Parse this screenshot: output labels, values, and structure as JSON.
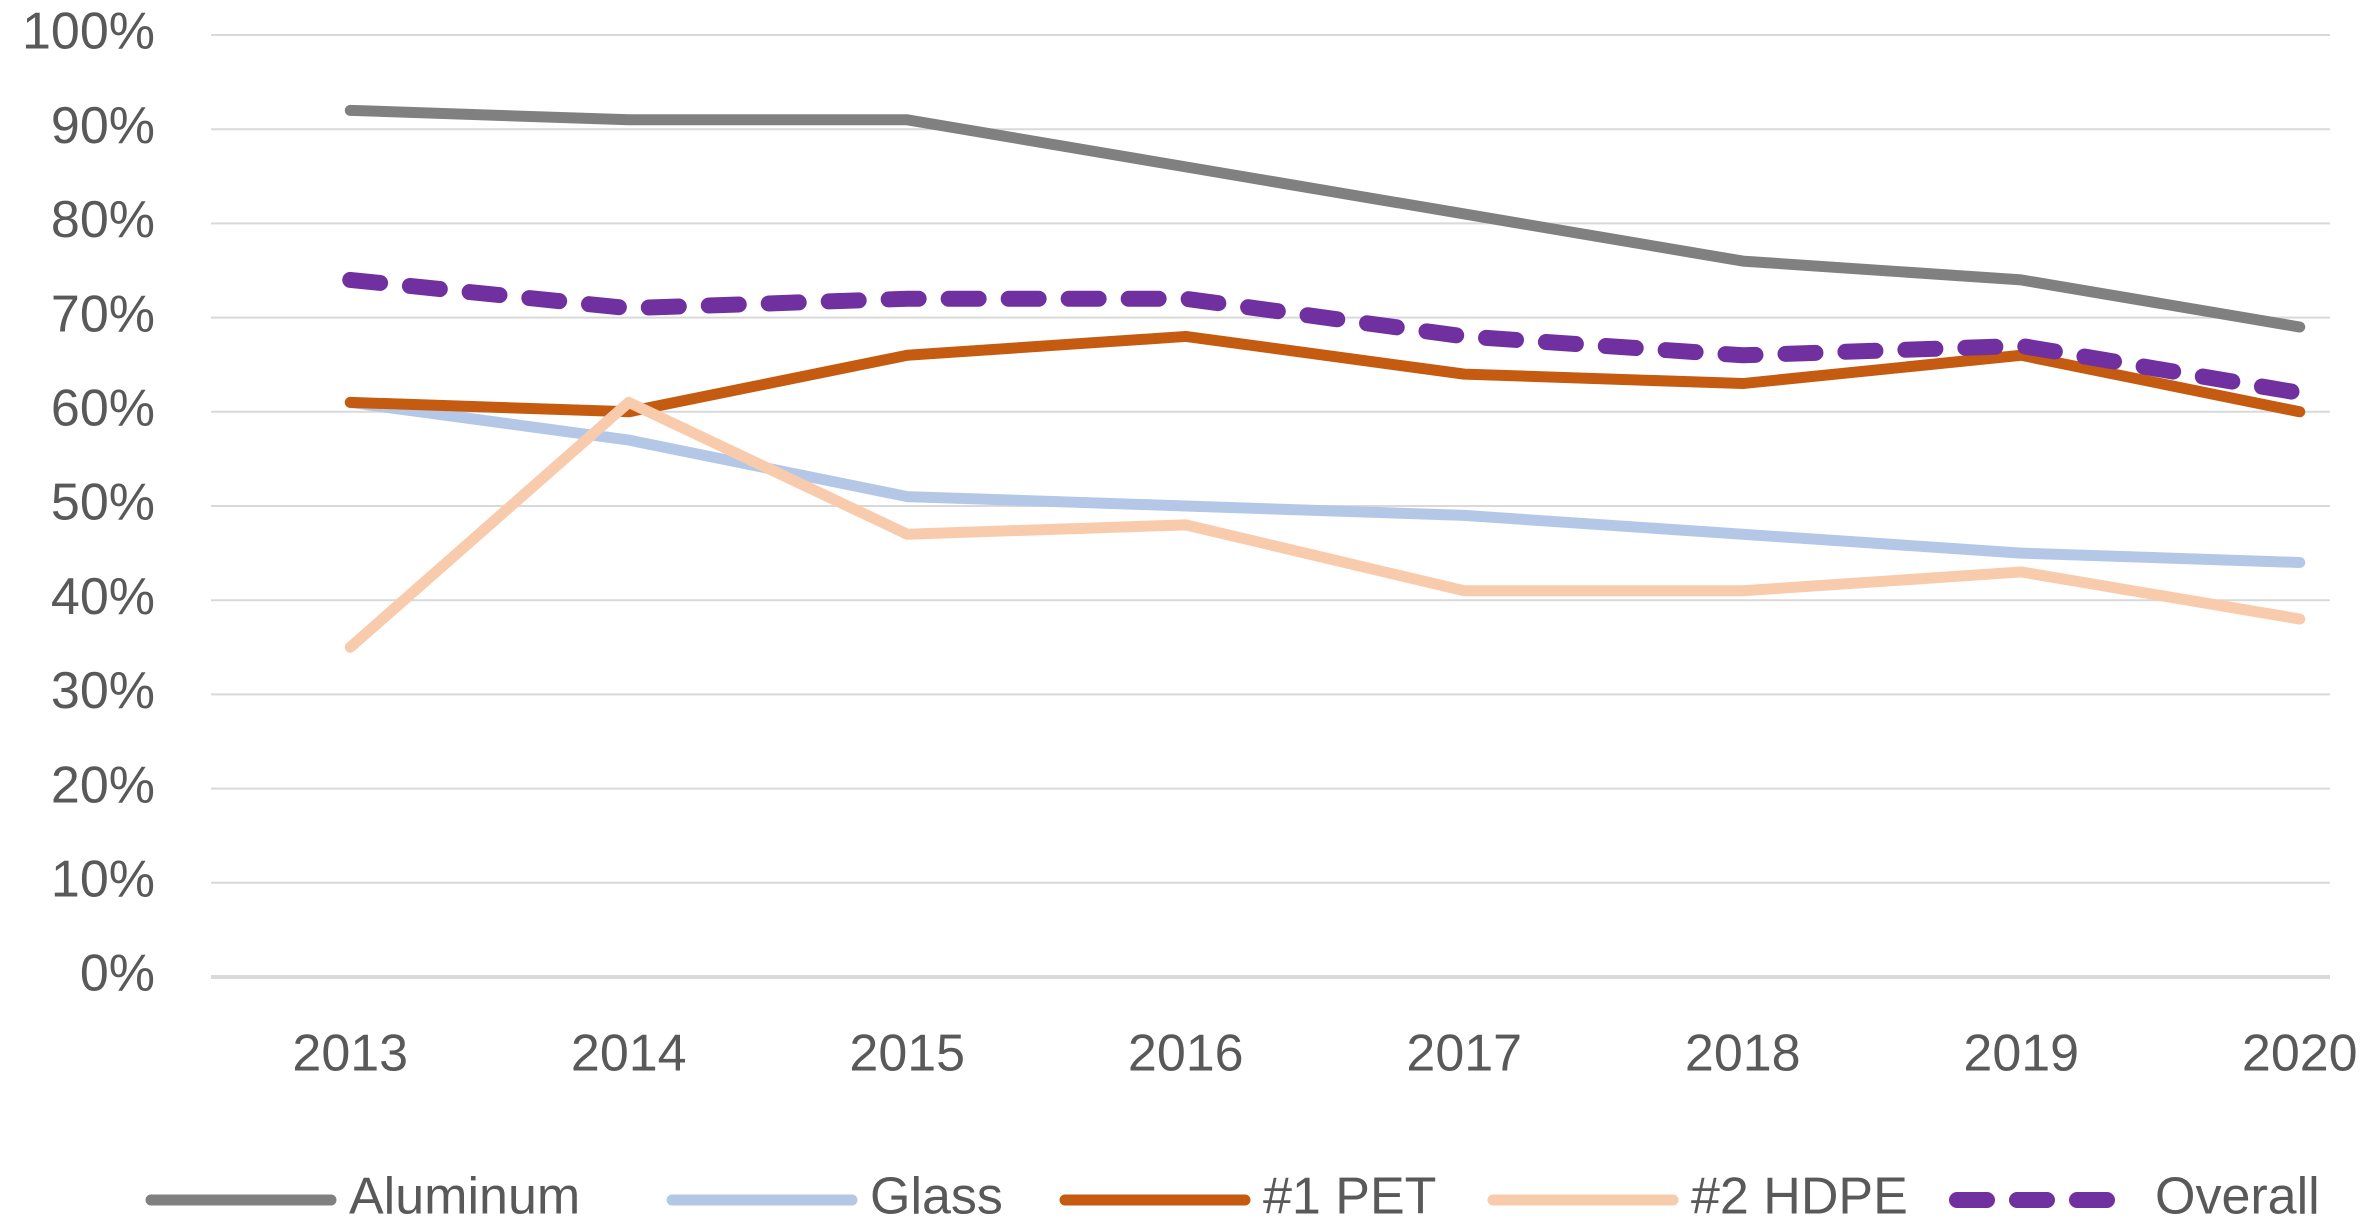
{
  "chart_data": {
    "type": "line",
    "categories": [
      "2013",
      "2014",
      "2015",
      "2016",
      "2017",
      "2018",
      "2019",
      "2020"
    ],
    "series": [
      {
        "name": "Aluminum",
        "color": "#808080",
        "values": [
          92,
          91,
          91,
          86,
          81,
          76,
          74,
          69
        ]
      },
      {
        "name": "Glass",
        "color": "#b4c7e7",
        "values": [
          61,
          57,
          51,
          50,
          49,
          47,
          45,
          44
        ]
      },
      {
        "name": "#1 PET",
        "color": "#c55a11",
        "values": [
          61,
          60,
          66,
          68,
          64,
          63,
          66,
          60
        ]
      },
      {
        "name": "#2 HDPE",
        "color": "#f8cbad",
        "values": [
          35,
          61,
          47,
          48,
          41,
          41,
          43,
          38
        ]
      },
      {
        "name": "Overall",
        "color": "#7030a0",
        "dashed": true,
        "values": [
          74,
          71,
          72,
          72,
          68,
          66,
          67,
          62
        ]
      }
    ],
    "ylim": [
      0,
      100
    ],
    "yticks": [
      {
        "value": 0,
        "label": "0%"
      },
      {
        "value": 10,
        "label": "10%"
      },
      {
        "value": 20,
        "label": "20%"
      },
      {
        "value": 30,
        "label": "30%"
      },
      {
        "value": 40,
        "label": "40%"
      },
      {
        "value": 50,
        "label": "50%"
      },
      {
        "value": 60,
        "label": "60%"
      },
      {
        "value": 70,
        "label": "70%"
      },
      {
        "value": 80,
        "label": "80%"
      },
      {
        "value": 90,
        "label": "90%"
      },
      {
        "value": 100,
        "label": "100%"
      }
    ],
    "grid": true,
    "legend": "bottom"
  }
}
